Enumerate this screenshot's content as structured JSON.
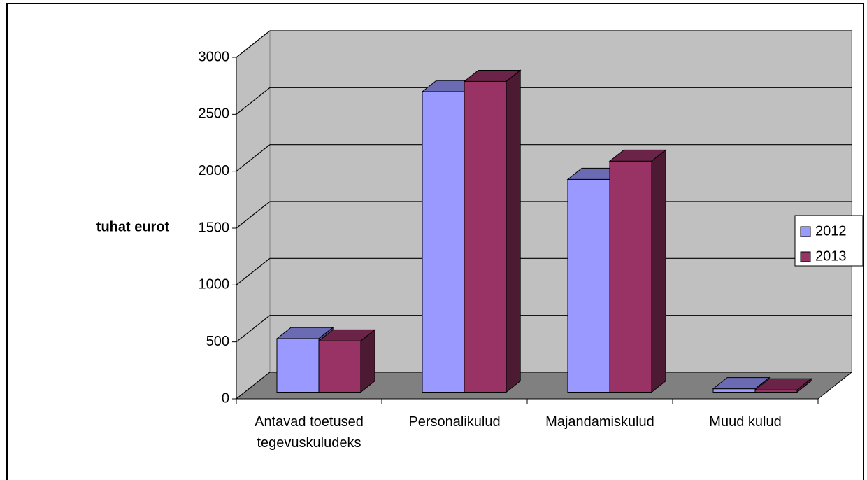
{
  "chart_data": {
    "type": "bar3d",
    "y_label": "tuhat eurot",
    "categories": [
      "Antavad toetused tegevuskuludeks",
      "Personalikulud",
      "Majandamiskulud",
      "Muud kulud"
    ],
    "series": [
      {
        "name": "2012",
        "color": "#9999ff",
        "values": [
          470,
          2640,
          1870,
          30
        ]
      },
      {
        "name": "2013",
        "color": "#993366",
        "values": [
          450,
          2730,
          2030,
          20
        ]
      }
    ],
    "ylim": [
      0,
      3000
    ],
    "yticks": [
      0,
      500,
      1000,
      1500,
      2000,
      2500,
      3000
    ],
    "grid": true,
    "legend": "right"
  }
}
